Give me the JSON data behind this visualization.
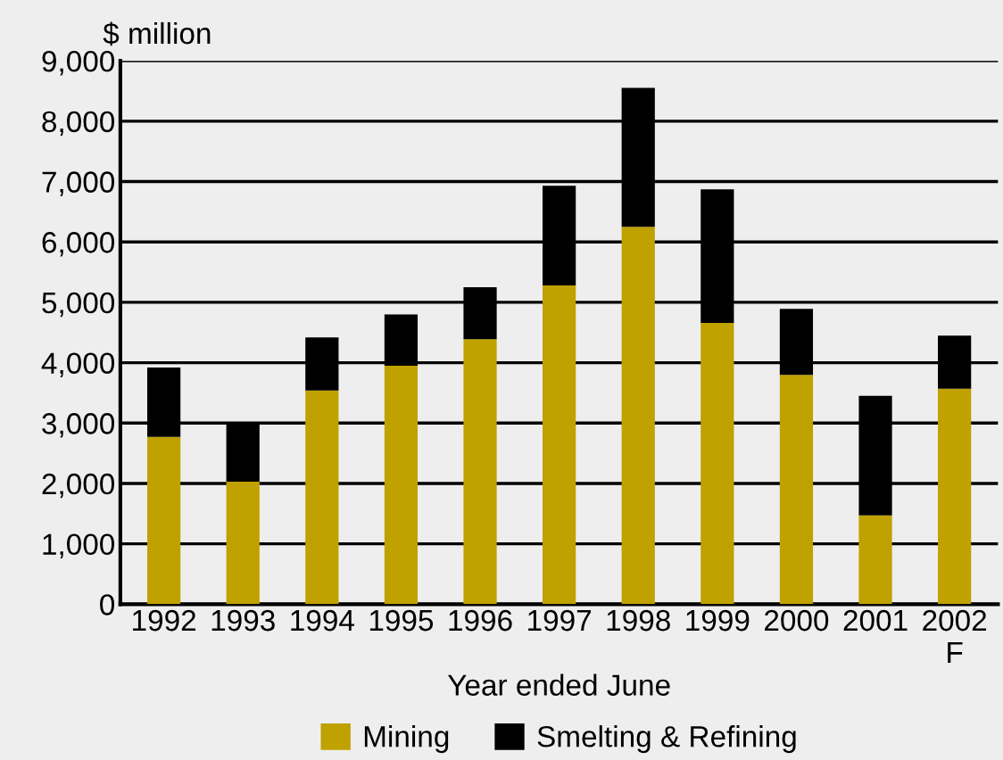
{
  "chart_data": {
    "type": "bar",
    "stacked": true,
    "ylabel": "$ million",
    "xlabel": "Year ended June",
    "categories": [
      "1992",
      "1993",
      "1994",
      "1995",
      "1996",
      "1997",
      "1998",
      "1999",
      "2000",
      "2001",
      "2002\nF"
    ],
    "series": [
      {
        "name": "Mining",
        "color": "#bfa100",
        "values": [
          2770,
          2030,
          3540,
          3950,
          4390,
          5280,
          6250,
          4660,
          3800,
          1470,
          3570
        ]
      },
      {
        "name": "Smelting & Refining",
        "color": "#000000",
        "values": [
          1150,
          970,
          880,
          850,
          860,
          1650,
          2300,
          2210,
          1090,
          1980,
          880
        ]
      }
    ],
    "ylim": [
      0,
      9000
    ],
    "yticks": [
      {
        "value": 0,
        "label": "0"
      },
      {
        "value": 1000,
        "label": "1,000"
      },
      {
        "value": 2000,
        "label": "2,000"
      },
      {
        "value": 3000,
        "label": "3,000"
      },
      {
        "value": 4000,
        "label": "4,000"
      },
      {
        "value": 5000,
        "label": "5,000"
      },
      {
        "value": 6000,
        "label": "6,000"
      },
      {
        "value": 7000,
        "label": "7,000"
      },
      {
        "value": 8000,
        "label": "8,000"
      },
      {
        "value": 9000,
        "label": "9,000"
      }
    ],
    "grid": "y",
    "legend": "bottom"
  }
}
